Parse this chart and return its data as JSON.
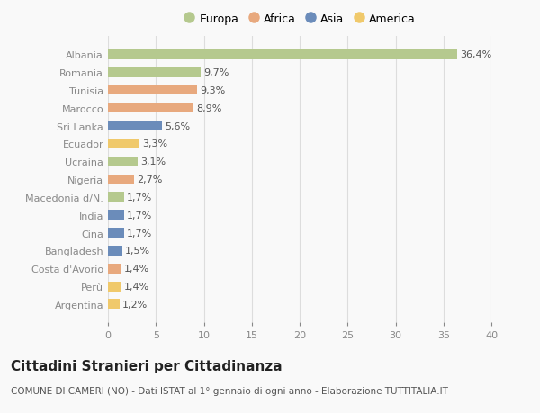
{
  "countries": [
    "Albania",
    "Romania",
    "Tunisia",
    "Marocco",
    "Sri Lanka",
    "Ecuador",
    "Ucraina",
    "Nigeria",
    "Macedonia d/N.",
    "India",
    "Cina",
    "Bangladesh",
    "Costa d'Avorio",
    "Perù",
    "Argentina"
  ],
  "values": [
    36.4,
    9.7,
    9.3,
    8.9,
    5.6,
    3.3,
    3.1,
    2.7,
    1.7,
    1.7,
    1.7,
    1.5,
    1.4,
    1.4,
    1.2
  ],
  "labels": [
    "36,4%",
    "9,7%",
    "9,3%",
    "8,9%",
    "5,6%",
    "3,3%",
    "3,1%",
    "2,7%",
    "1,7%",
    "1,7%",
    "1,7%",
    "1,5%",
    "1,4%",
    "1,4%",
    "1,2%"
  ],
  "colors": [
    "#b5c98e",
    "#b5c98e",
    "#e8a97e",
    "#e8a97e",
    "#6b8cba",
    "#f0c96b",
    "#b5c98e",
    "#e8a97e",
    "#b5c98e",
    "#6b8cba",
    "#6b8cba",
    "#6b8cba",
    "#e8a97e",
    "#f0c96b",
    "#f0c96b"
  ],
  "legend_labels": [
    "Europa",
    "Africa",
    "Asia",
    "America"
  ],
  "legend_colors": [
    "#b5c98e",
    "#e8a97e",
    "#6b8cba",
    "#f0c96b"
  ],
  "title": "Cittadini Stranieri per Cittadinanza",
  "subtitle": "COMUNE DI CAMERI (NO) - Dati ISTAT al 1° gennaio di ogni anno - Elaborazione TUTTITALIA.IT",
  "xlim": [
    0,
    40
  ],
  "xticks": [
    0,
    5,
    10,
    15,
    20,
    25,
    30,
    35,
    40
  ],
  "background_color": "#f9f9f9",
  "grid_color": "#dddddd",
  "bar_height": 0.55,
  "label_fontsize": 8,
  "tick_fontsize": 8,
  "title_fontsize": 11,
  "subtitle_fontsize": 7.5
}
